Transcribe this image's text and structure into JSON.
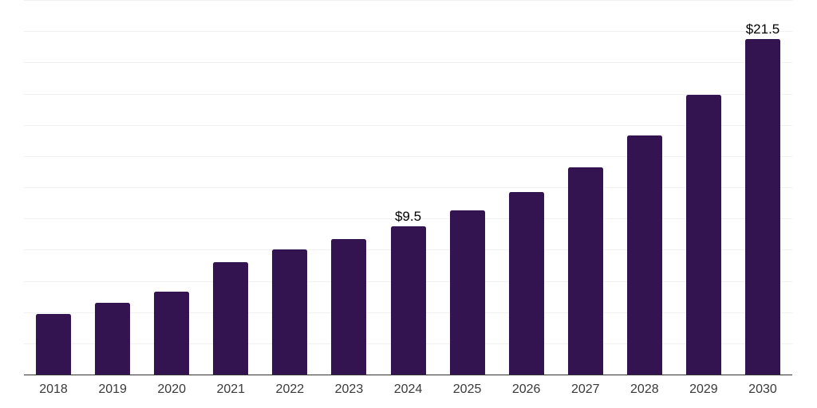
{
  "chart_data": {
    "type": "bar",
    "title": "",
    "categories": [
      "2018",
      "2019",
      "2020",
      "2021",
      "2022",
      "2023",
      "2024",
      "2025",
      "2026",
      "2027",
      "2028",
      "2029",
      "2030"
    ],
    "values": [
      3.9,
      4.6,
      5.3,
      7.2,
      8.0,
      8.7,
      9.5,
      10.5,
      11.7,
      13.3,
      15.3,
      17.9,
      21.5
    ],
    "data_labels": [
      "",
      "",
      "",
      "",
      "",
      "",
      "$9.5",
      "",
      "",
      "",
      "",
      "",
      "$21.5"
    ],
    "xlabel": "",
    "ylabel": "",
    "ylim": [
      0,
      24
    ],
    "gridline_step": 2,
    "grid": "horizontal",
    "legend": "none",
    "y_tick_labels_visible": false,
    "colors": {
      "bar": "#341450",
      "axis_line": "#333333",
      "gridline": "#f1f1f3",
      "x_tick_label": "#3a3a3a",
      "data_label": "#000000",
      "background": "#ffffff"
    }
  }
}
